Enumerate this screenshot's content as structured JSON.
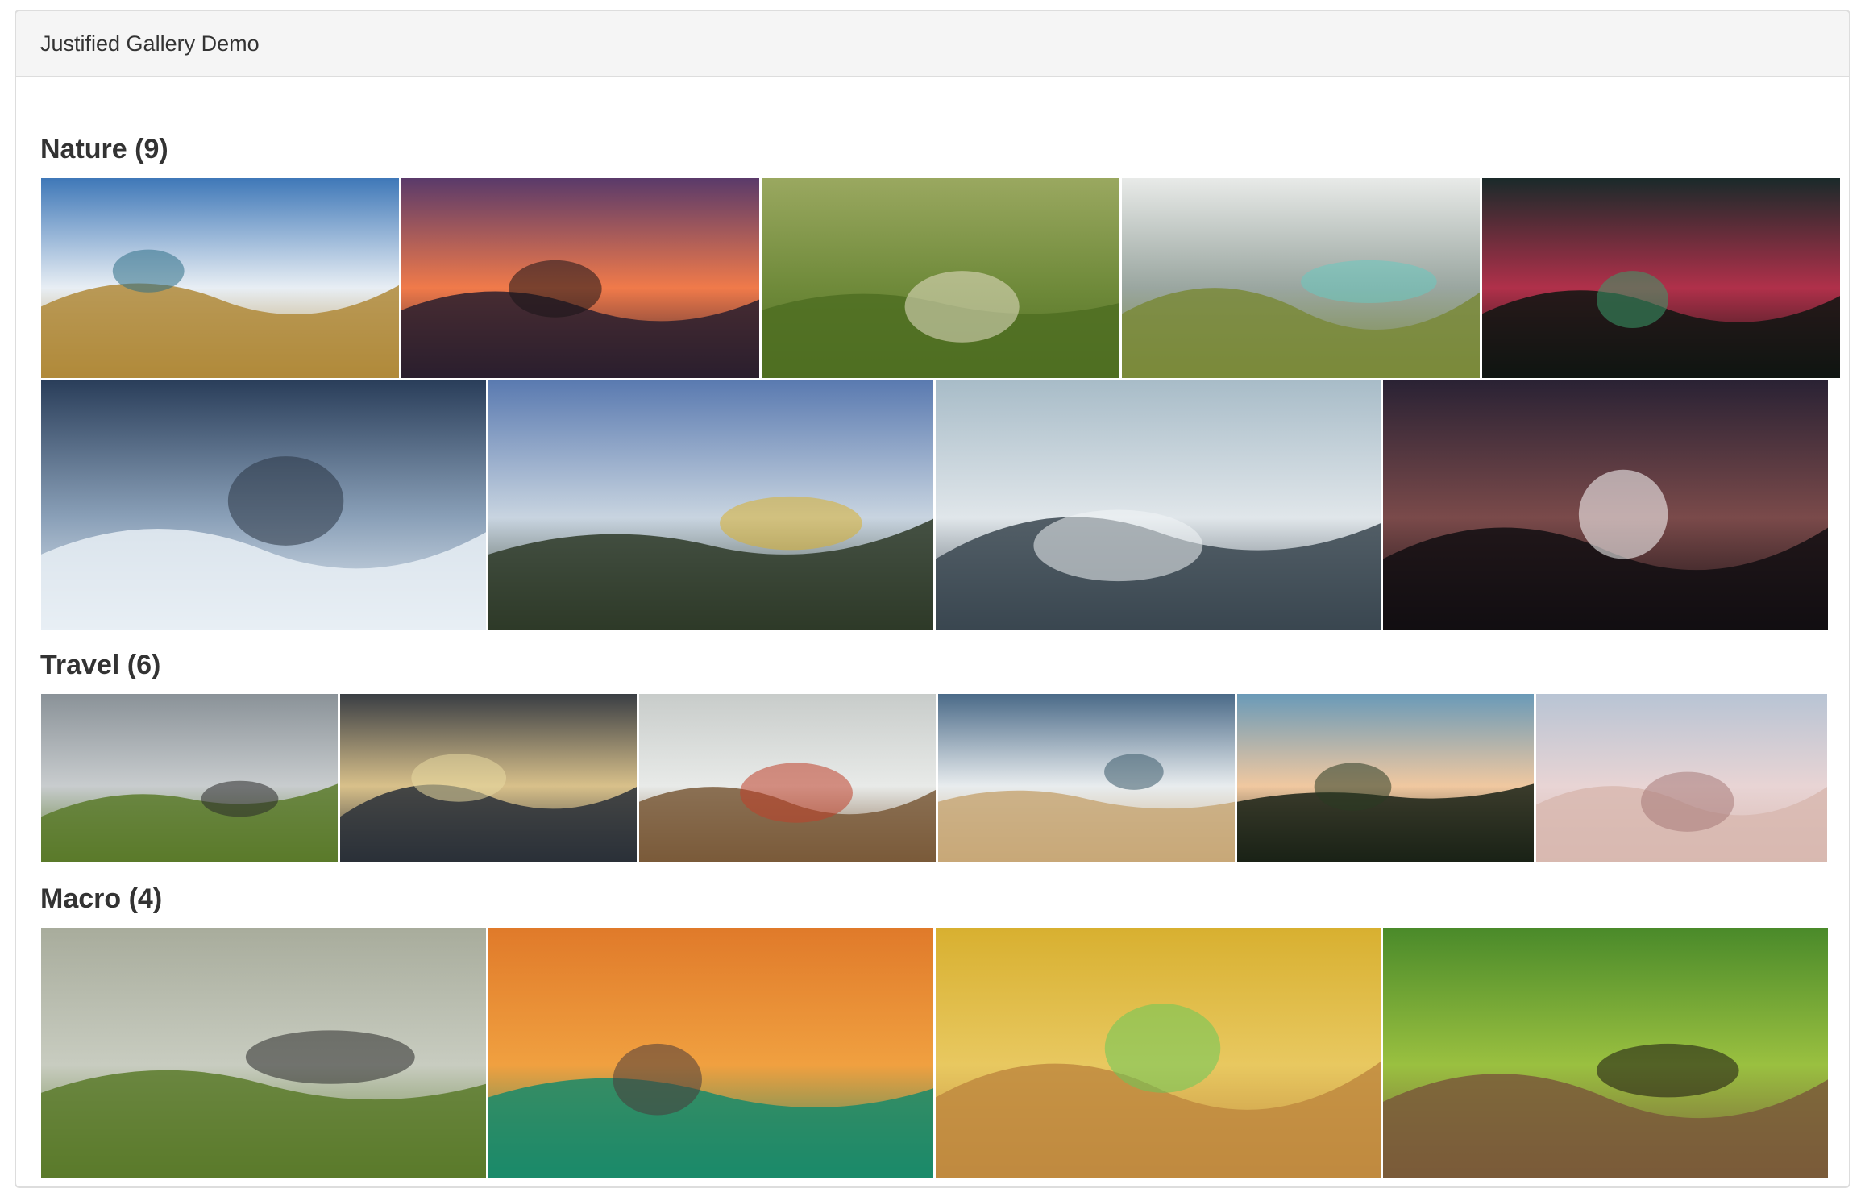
{
  "window": {
    "title": "Justified Gallery Demo"
  },
  "sections": [
    {
      "title": "Nature (9)",
      "photos": [
        {
          "icon": "seaside-grass-photo",
          "sky": "#3f78b8",
          "sky2": "#e8eef4",
          "ground": "#b08a3a",
          "accent": "#2f6f86"
        },
        {
          "icon": "sunset-sea-photo",
          "sky": "#5a3a6a",
          "sky2": "#f07a4a",
          "ground": "#2a1e2e",
          "accent": "#1a1418"
        },
        {
          "icon": "green-hills-sheep-photo",
          "sky": "#9aa860",
          "sky2": "#6f8a3a",
          "ground": "#4f6e22",
          "accent": "#e8e0c8"
        },
        {
          "icon": "coastal-cliff-photo",
          "sky": "#e8eae8",
          "sky2": "#9aa6a0",
          "ground": "#7a8a3a",
          "accent": "#6ac8c0"
        },
        {
          "icon": "aurora-forest-photo",
          "sky": "#1a2a2a",
          "sky2": "#b0304a",
          "ground": "#0f1512",
          "accent": "#3a9a6a"
        },
        {
          "icon": "snowy-mountains-photo",
          "sky": "#2a3e5a",
          "sky2": "#8aa0b8",
          "ground": "#e8eef4",
          "accent": "#2a3444"
        },
        {
          "icon": "alpine-valley-photo",
          "sky": "#5a7ab0",
          "sky2": "#c8d4e0",
          "ground": "#2e3a28",
          "accent": "#d8b030"
        },
        {
          "icon": "snow-peak-photo",
          "sky": "#a8bcc8",
          "sky2": "#e0e6ea",
          "ground": "#3a4650",
          "accent": "#f0f4f6"
        },
        {
          "icon": "starry-night-photo",
          "sky": "#2a2234",
          "sky2": "#7a4a4a",
          "ground": "#120e12",
          "accent": "#ffffff"
        }
      ]
    },
    {
      "title": "Travel (6)",
      "photos": [
        {
          "icon": "mountain-road-photo",
          "sky": "#8a9298",
          "sky2": "#c8ccce",
          "ground": "#5a7a2a",
          "accent": "#2a2a2a"
        },
        {
          "icon": "pier-sunset-photo",
          "sky": "#3a3e44",
          "sky2": "#d8c08a",
          "ground": "#2a3038",
          "accent": "#e8d8a0"
        },
        {
          "icon": "golden-gate-photo",
          "sky": "#c8ccca",
          "sky2": "#e8eae8",
          "ground": "#7a5a3a",
          "accent": "#c0402a"
        },
        {
          "icon": "sunny-beach-photo",
          "sky": "#4a6a88",
          "sky2": "#e8ecee",
          "ground": "#c8a878",
          "accent": "#3a5a6a"
        },
        {
          "icon": "palm-trees-photo",
          "sky": "#6a9ab8",
          "sky2": "#f0c8a0",
          "ground": "#1a2216",
          "accent": "#2a3a22"
        },
        {
          "icon": "leaning-tower-photo",
          "sky": "#b8c4d4",
          "sky2": "#e8d4d4",
          "ground": "#d8b8b0",
          "accent": "#a87a78"
        }
      ]
    },
    {
      "title": "Macro (4)",
      "photos": [
        {
          "icon": "ant-macro-photo",
          "sky": "#a8ac9c",
          "sky2": "#c8ccc0",
          "ground": "#5a7a2a",
          "accent": "#2a2a2a"
        },
        {
          "icon": "fly-eye-macro-photo",
          "sky": "#e07a2a",
          "sky2": "#f0a040",
          "ground": "#1a8a6a",
          "accent": "#4a3a3a"
        },
        {
          "icon": "tree-frog-macro-photo",
          "sky": "#d8b030",
          "sky2": "#e8c860",
          "ground": "#c08a40",
          "accent": "#6ac85a"
        },
        {
          "icon": "jumping-spider-macro-photo",
          "sky": "#4a8a2a",
          "sky2": "#9ac040",
          "ground": "#7a5a3a",
          "accent": "#1a1410"
        }
      ]
    }
  ]
}
